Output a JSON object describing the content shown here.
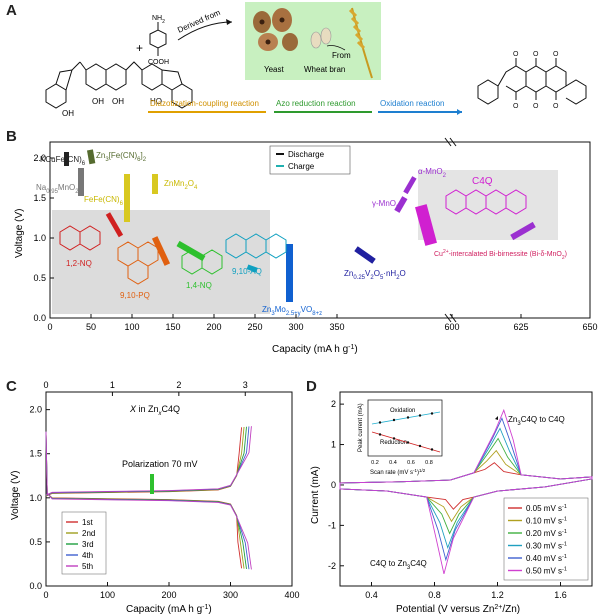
{
  "panel_a": {
    "letter": "A",
    "reagent_top": "NH",
    "reagent_bottom": "COOH",
    "derived_label": "Derived from",
    "yeast_label": "Yeast",
    "wheat_label": "Wheat bran",
    "from_label": "From",
    "steps": [
      {
        "label": "Diazotization-coupling reaction",
        "color": "#e0a000"
      },
      {
        "label": "Azo reduction reaction",
        "color": "#2e9a2e"
      },
      {
        "label": "Oxidation reaction",
        "color": "#1e7fd0"
      }
    ],
    "oh_labels": [
      "OH",
      "OH",
      "OH",
      "HO"
    ],
    "plus": "+",
    "nh2_sub": "2",
    "bio_bg": "#c8f0c0"
  },
  "panel_b": {
    "letter": "B",
    "ylabel": "Voltage (V)",
    "xlabel": "Capacity (mA h g",
    "xlabel_sup": "-1",
    "xlabel_end": ")",
    "xticks": [
      "0",
      "50",
      "100",
      "150",
      "200",
      "250",
      "300",
      "350",
      "600",
      "625",
      "650"
    ],
    "yticks": [
      "0.0",
      "0.5",
      "1.0",
      "1.5",
      "2.0"
    ],
    "legend": {
      "discharge": "Discharge",
      "charge": "Charge"
    },
    "materials": [
      {
        "name": "KCuFe(CN)",
        "sub": "6",
        "color": "#222"
      },
      {
        "name": "Zn",
        "sub": "3",
        "rest": "[Fe(CN)",
        "sub2": "6",
        "rest2": "]",
        "sub3": "2",
        "color": "#556b2f"
      },
      {
        "name": "Na",
        "sub": "0.95",
        "rest": "MnO",
        "sub2": "2",
        "color": "#777"
      },
      {
        "name": "FeFe(CN)",
        "sub": "6",
        "color": "#c9b800"
      },
      {
        "name": "ZnMn",
        "sub": "2",
        "rest": "O",
        "sub2": "4",
        "color": "#c9b800"
      },
      {
        "name": "α-MnO",
        "sub": "2",
        "color": "#9b30d0"
      },
      {
        "name": "γ-MnO",
        "sub": "2",
        "color": "#9b30d0"
      },
      {
        "name": "C4Q",
        "color": "#d020d0"
      },
      {
        "name": "1,2-NQ",
        "color": "#d02020"
      },
      {
        "name": "9,10-PQ",
        "color": "#e06010"
      },
      {
        "name": "1,4-NQ",
        "color": "#2ec02e"
      },
      {
        "name": "9,10-AQ",
        "color": "#10a0c0"
      },
      {
        "name": "Zn",
        "sub": "0.25",
        "rest": "V",
        "sub2": "2",
        "rest2": "O",
        "sub3": "5",
        "rest3": "·nH",
        "sub4": "2",
        "rest4": "O",
        "color": "#2020a0"
      },
      {
        "name": "Zn",
        "sub": "3",
        "rest": "Mo",
        "sub2": "2.5+y",
        "rest2": "VO",
        "sub3": "8+z",
        "color": "#1060d0"
      },
      {
        "name": "Cu",
        "sup": "2+",
        "rest": "-intercalated Bi-birnessite (Bi-δ-MnO",
        "sub2": "2",
        "rest2": ")",
        "color": "#d02060"
      }
    ]
  },
  "panel_c": {
    "letter": "C",
    "ylabel": "Voltage (V)",
    "xlabel": "Capacity (mA h g",
    "xlabel_sup": "-1",
    "xlabel_end": ")",
    "top_axis_label_pre": "X",
    "top_axis_label_post": "in Zn",
    "top_axis_label_sub": "x",
    "top_axis_label_end": "C4Q",
    "xticks": [
      "0",
      "100",
      "200",
      "300",
      "400"
    ],
    "top_ticks": [
      "0",
      "1",
      "2",
      "3"
    ],
    "yticks": [
      "0.0",
      "0.5",
      "1.0",
      "1.5",
      "2.0"
    ],
    "annotation": "Polarization 70 mV",
    "cycles": [
      {
        "label": "1st",
        "color": "#d03030"
      },
      {
        "label": "2nd",
        "color": "#a0a020"
      },
      {
        "label": "3rd",
        "color": "#20a040"
      },
      {
        "label": "4th",
        "color": "#4060d0"
      },
      {
        "label": "5th",
        "color": "#c040c0"
      }
    ]
  },
  "panel_d": {
    "letter": "D",
    "ylabel": "Current (mA)",
    "xlabel": "Potential (V versus Zn",
    "xlabel_sup": "2+",
    "xlabel_end": "/Zn)",
    "xticks": [
      "0.4",
      "0.8",
      "1.2",
      "1.6"
    ],
    "yticks": [
      "-2",
      "-1",
      "0",
      "1",
      "2"
    ],
    "anno_top": "Zn",
    "anno_top_sub": "3",
    "anno_top_end": "C4Q to C4Q",
    "anno_bottom": "C4Q to Zn",
    "anno_bottom_sub": "3",
    "anno_bottom_end": "C4Q",
    "inset": {
      "ylabel": "Peak current (mA)",
      "xlabel": "Scan rate (mV s",
      "xlabel_sup": "-1",
      "xlabel_end": ")",
      "xlabel_sup2": "1/2",
      "xticks": [
        "0.2",
        "0.4",
        "0.6",
        "0.8"
      ],
      "oxidation": "Oxidation",
      "reduction": "Reduction"
    },
    "scan_rates": [
      {
        "label": "0.05 mV s",
        "sup": "-1",
        "color": "#d03030"
      },
      {
        "label": "0.10 mV s",
        "sup": "-1",
        "color": "#b0a020"
      },
      {
        "label": "0.20 mV s",
        "sup": "-1",
        "color": "#40b040"
      },
      {
        "label": "0.30 mV s",
        "sup": "-1",
        "color": "#20a0c0"
      },
      {
        "label": "0.40 mV s",
        "sup": "-1",
        "color": "#4060d0"
      },
      {
        "label": "0.50 mV s",
        "sup": "-1",
        "color": "#d040d0"
      }
    ]
  }
}
